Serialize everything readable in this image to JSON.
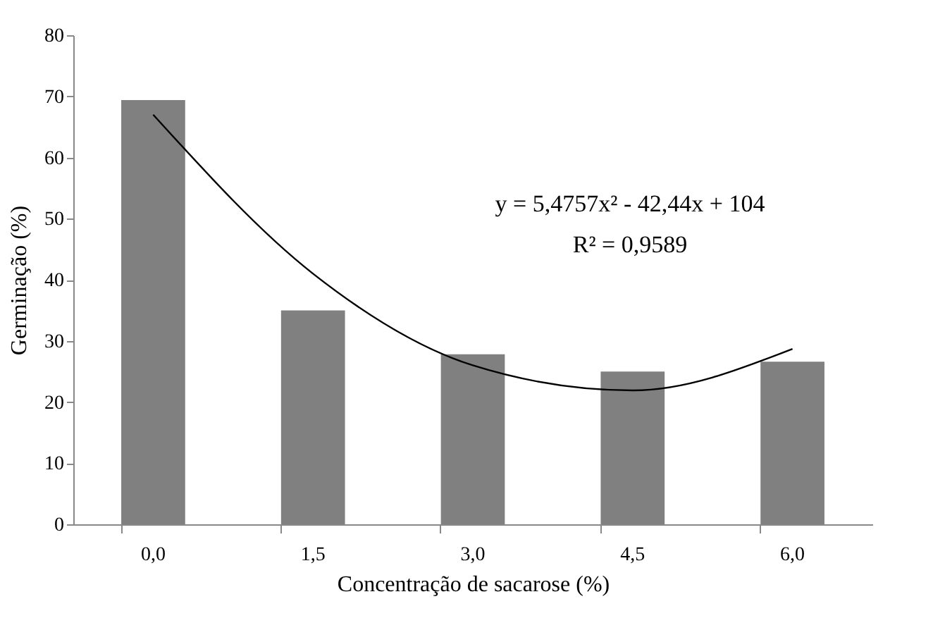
{
  "chart_data": {
    "type": "bar",
    "xlabel": "Concentração de sacarose (%)",
    "ylabel": "Germinação (%)",
    "categories": [
      "0,0",
      "1,5",
      "3,0",
      "4,5",
      "6,0"
    ],
    "series": [
      {
        "type": "bar",
        "color": "#808080",
        "values": [
          69.4,
          35.0,
          27.8,
          25.0,
          26.6
        ]
      },
      {
        "type": "line",
        "color": "#000000",
        "values": [
          67.0,
          41.0,
          26.0,
          21.9,
          28.7
        ]
      }
    ],
    "ylim": [
      0,
      80
    ],
    "yticks": [
      0,
      10,
      20,
      30,
      40,
      50,
      60,
      70,
      80
    ],
    "grid": false,
    "annotations": [
      "y = 5,4757x² - 42,44x + 104",
      "R² = 0,9589"
    ]
  }
}
